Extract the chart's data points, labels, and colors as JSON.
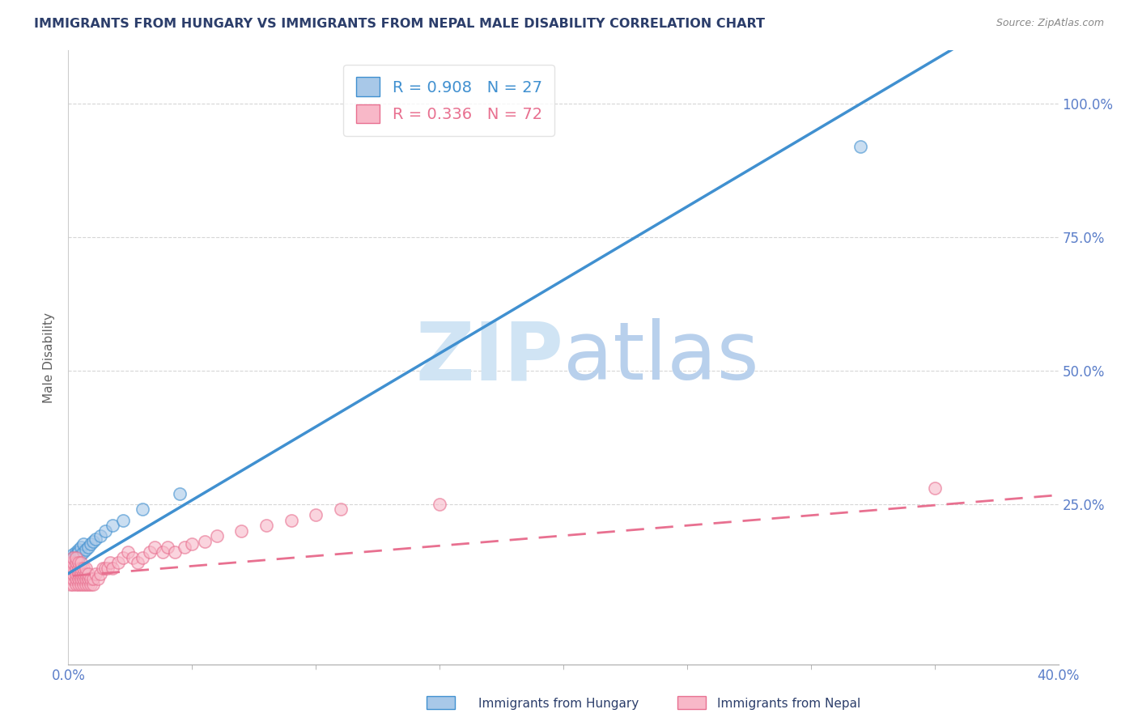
{
  "title": "IMMIGRANTS FROM HUNGARY VS IMMIGRANTS FROM NEPAL MALE DISABILITY CORRELATION CHART",
  "source": "Source: ZipAtlas.com",
  "ylabel": "Male Disability",
  "xlim": [
    0.0,
    0.4
  ],
  "ylim": [
    -0.05,
    1.1
  ],
  "xtick_labels": [
    "0.0%",
    "40.0%"
  ],
  "xtick_vals": [
    0.0,
    0.4
  ],
  "ytick_vals": [
    0.25,
    0.5,
    0.75,
    1.0
  ],
  "ytick_labels": [
    "25.0%",
    "50.0%",
    "75.0%",
    "100.0%"
  ],
  "hungary_R": 0.908,
  "hungary_N": 27,
  "nepal_R": 0.336,
  "nepal_N": 72,
  "hungary_scatter_color": "#A8C8E8",
  "nepal_scatter_color": "#F8B8C8",
  "hungary_line_color": "#4090D0",
  "nepal_line_color": "#E87090",
  "background_color": "#FFFFFF",
  "grid_color": "#CCCCCC",
  "title_color": "#2C3E6B",
  "axis_label_color": "#606060",
  "tick_color": "#5B7EC9",
  "watermark_color": "#D0E4F4",
  "hungary_scatter_x": [
    0.001,
    0.001,
    0.002,
    0.002,
    0.002,
    0.003,
    0.003,
    0.003,
    0.004,
    0.004,
    0.004,
    0.005,
    0.005,
    0.006,
    0.006,
    0.007,
    0.008,
    0.009,
    0.01,
    0.011,
    0.013,
    0.015,
    0.018,
    0.022,
    0.03,
    0.045,
    0.32
  ],
  "hungary_scatter_y": [
    0.13,
    0.145,
    0.14,
    0.155,
    0.15,
    0.145,
    0.16,
    0.155,
    0.15,
    0.165,
    0.16,
    0.155,
    0.17,
    0.16,
    0.175,
    0.165,
    0.17,
    0.175,
    0.18,
    0.185,
    0.19,
    0.2,
    0.21,
    0.22,
    0.24,
    0.27,
    0.92
  ],
  "nepal_scatter_x": [
    0.001,
    0.001,
    0.001,
    0.001,
    0.001,
    0.002,
    0.002,
    0.002,
    0.002,
    0.002,
    0.002,
    0.003,
    0.003,
    0.003,
    0.003,
    0.003,
    0.003,
    0.004,
    0.004,
    0.004,
    0.004,
    0.004,
    0.005,
    0.005,
    0.005,
    0.005,
    0.005,
    0.006,
    0.006,
    0.006,
    0.006,
    0.007,
    0.007,
    0.007,
    0.007,
    0.008,
    0.008,
    0.008,
    0.009,
    0.009,
    0.01,
    0.01,
    0.011,
    0.012,
    0.013,
    0.014,
    0.015,
    0.016,
    0.017,
    0.018,
    0.02,
    0.022,
    0.024,
    0.026,
    0.028,
    0.03,
    0.033,
    0.035,
    0.038,
    0.04,
    0.043,
    0.047,
    0.05,
    0.055,
    0.06,
    0.07,
    0.08,
    0.09,
    0.1,
    0.11,
    0.15,
    0.35
  ],
  "nepal_scatter_y": [
    0.1,
    0.11,
    0.12,
    0.13,
    0.14,
    0.1,
    0.11,
    0.12,
    0.13,
    0.14,
    0.15,
    0.1,
    0.11,
    0.12,
    0.13,
    0.14,
    0.15,
    0.1,
    0.11,
    0.12,
    0.13,
    0.14,
    0.1,
    0.11,
    0.12,
    0.13,
    0.14,
    0.1,
    0.11,
    0.12,
    0.13,
    0.1,
    0.11,
    0.12,
    0.13,
    0.1,
    0.11,
    0.12,
    0.1,
    0.11,
    0.1,
    0.11,
    0.12,
    0.11,
    0.12,
    0.13,
    0.13,
    0.13,
    0.14,
    0.13,
    0.14,
    0.15,
    0.16,
    0.15,
    0.14,
    0.15,
    0.16,
    0.17,
    0.16,
    0.17,
    0.16,
    0.17,
    0.175,
    0.18,
    0.19,
    0.2,
    0.21,
    0.22,
    0.23,
    0.24,
    0.25,
    0.28
  ],
  "hungary_line_slope": 2.75,
  "hungary_line_intercept": 0.12,
  "nepal_line_slope": 0.38,
  "nepal_line_intercept": 0.115
}
